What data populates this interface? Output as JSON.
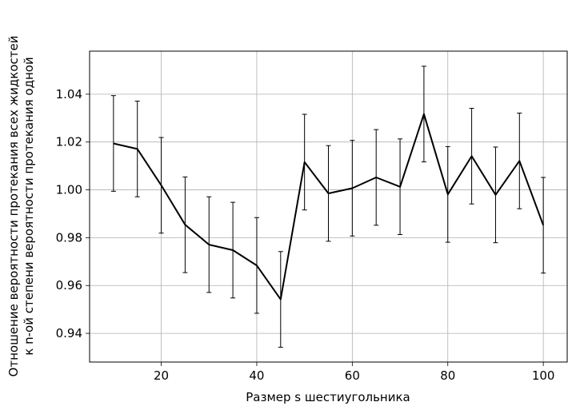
{
  "chart_data": {
    "type": "line",
    "title": "",
    "xlabel": "Размер s шестиугольника",
    "ylabel_lines": [
      "Отношение вероятности протекания всех жидкостей",
      "к n-ой степени вероятности протекания одной"
    ],
    "xlim": [
      5,
      105
    ],
    "ylim": [
      0.928,
      1.058
    ],
    "grid": true,
    "x_ticks": [
      20,
      40,
      60,
      80,
      100
    ],
    "y_ticks": [
      0.94,
      0.96,
      0.98,
      1.0,
      1.02,
      1.04
    ],
    "y_tick_labels": [
      "0.94",
      "0.96",
      "0.98",
      "1.00",
      "1.02",
      "1.04"
    ],
    "series": [
      {
        "color": "#000000",
        "x": [
          10,
          15,
          20,
          25,
          30,
          35,
          40,
          45,
          50,
          55,
          60,
          65,
          70,
          75,
          80,
          85,
          90,
          95,
          100
        ],
        "y": [
          1.0194,
          1.0171,
          1.0019,
          0.9854,
          0.9771,
          0.9748,
          0.9684,
          0.9542,
          1.0116,
          0.9985,
          1.0007,
          1.0052,
          1.0013,
          1.0317,
          0.9981,
          1.0141,
          0.9979,
          1.0121,
          0.9852
        ],
        "err": [
          0.02,
          0.02,
          0.02,
          0.02,
          0.02,
          0.02,
          0.02,
          0.02,
          0.02,
          0.02,
          0.02,
          0.02,
          0.02,
          0.02,
          0.02,
          0.02,
          0.02,
          0.02,
          0.02
        ]
      }
    ]
  }
}
